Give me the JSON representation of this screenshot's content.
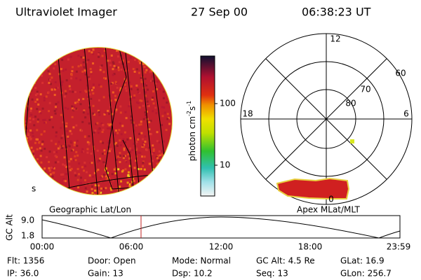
{
  "header": {
    "instrument": "Ultraviolet Imager",
    "date": "27 Sep 00",
    "time": "06:38:23 UT"
  },
  "colorbar": {
    "label": "photon cm",
    "exp1": "-2",
    "unit2": "s",
    "exp2": "-1",
    "ticks": [
      "100",
      "10"
    ]
  },
  "polar": {
    "hours": [
      "12",
      "18",
      "6",
      "0"
    ],
    "latitudes": [
      "60",
      "70",
      "80"
    ]
  },
  "panels": {
    "left": "Geographic Lat/Lon",
    "right": "Apex MLat/MLT"
  },
  "altitude_plot": {
    "axis_label": "GC Alt",
    "yticks": [
      "9.0",
      "1.8"
    ],
    "xticks": [
      "00:00",
      "06:00",
      "12:00",
      "18:00",
      "23:59"
    ]
  },
  "footer": {
    "rows": [
      [
        "Flt: 1356",
        "Door: Open",
        "Mode: Normal",
        "GC Alt: 4.5 Re",
        "GLat: 16.9"
      ],
      [
        "IP: 36.0",
        "Gain: 13",
        "Dsp: 10.2",
        "Seq: 13",
        "GLon: 256.7"
      ]
    ]
  }
}
